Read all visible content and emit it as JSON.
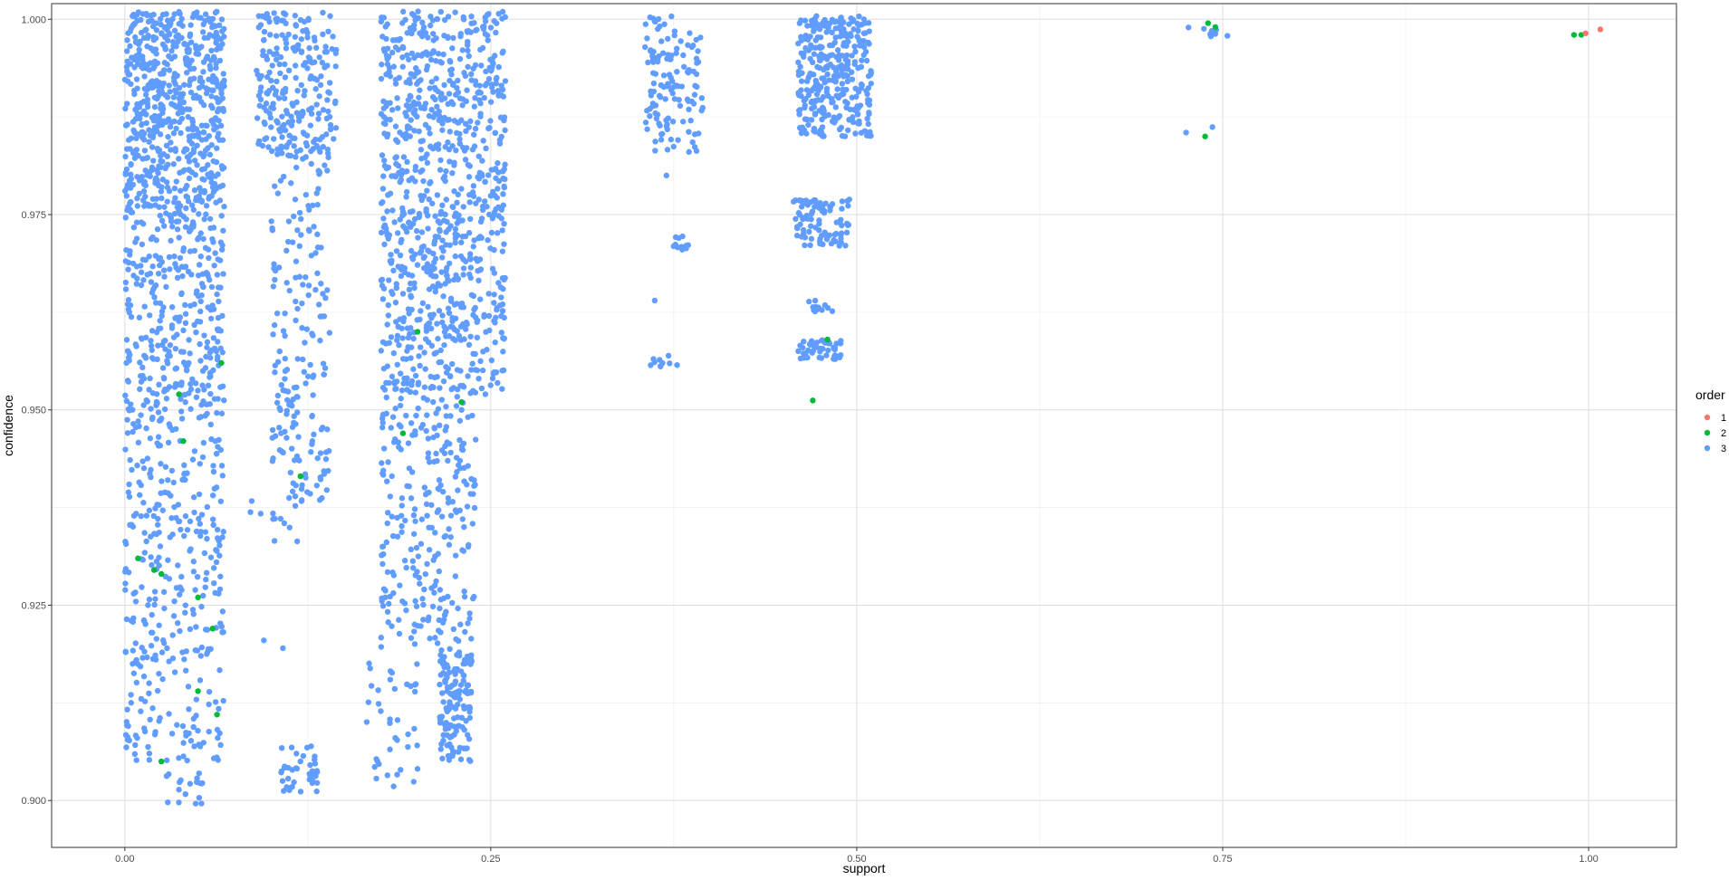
{
  "chart_data": {
    "type": "scatter",
    "title": "",
    "xlabel": "support",
    "ylabel": "confidence",
    "xlim": [
      -0.05,
      1.06
    ],
    "ylim": [
      0.894,
      1.002
    ],
    "x_ticks": [
      0.0,
      0.25,
      0.5,
      0.75,
      1.0
    ],
    "x_tick_labels": [
      "0.00",
      "0.25",
      "0.50",
      "0.75",
      "1.00"
    ],
    "y_ticks": [
      0.9,
      0.925,
      0.95,
      0.975,
      1.0
    ],
    "y_tick_labels": [
      "0.900",
      "0.925",
      "0.950",
      "0.975",
      "1.000"
    ],
    "grid": true,
    "legend": {
      "title": "order",
      "position": "right"
    },
    "colors": {
      "1": "#F8766D",
      "2": "#00BA38",
      "3": "#619CFF"
    },
    "series": [
      {
        "name": "1",
        "color": "#F8766D",
        "points": [
          [
            0.998,
            0.9982
          ],
          [
            1.008,
            0.9987
          ]
        ]
      },
      {
        "name": "2",
        "color": "#00BA38",
        "points": [
          [
            0.99,
            0.998
          ],
          [
            0.995,
            0.998
          ],
          [
            0.74,
            0.9995
          ],
          [
            0.745,
            0.999
          ],
          [
            0.738,
            0.985
          ],
          [
            0.47,
            0.9512
          ],
          [
            0.02,
            0.9295
          ],
          [
            0.025,
            0.929
          ],
          [
            0.06,
            0.922
          ],
          [
            0.05,
            0.914
          ],
          [
            0.063,
            0.911
          ],
          [
            0.025,
            0.905
          ],
          [
            0.04,
            0.946
          ],
          [
            0.037,
            0.952
          ],
          [
            0.19,
            0.947
          ],
          [
            0.2,
            0.96
          ],
          [
            0.23,
            0.951
          ],
          [
            0.12,
            0.9415
          ],
          [
            0.48,
            0.959
          ],
          [
            0.009,
            0.931
          ],
          [
            0.066,
            0.956
          ],
          [
            0.05,
            0.926
          ]
        ]
      },
      {
        "name": "3",
        "color": "#619CFF",
        "clusters": [
          {
            "x": [
              0.0,
              0.068
            ],
            "y": [
              0.976,
              1.001
            ],
            "n": 620
          },
          {
            "x": [
              0.0,
              0.068
            ],
            "y": [
              0.95,
              0.976
            ],
            "n": 340
          },
          {
            "x": [
              0.0,
              0.068
            ],
            "y": [
              0.92,
              0.95
            ],
            "n": 240
          },
          {
            "x": [
              0.0,
              0.068
            ],
            "y": [
              0.905,
              0.92
            ],
            "n": 110
          },
          {
            "x": [
              0.025,
              0.055
            ],
            "y": [
              0.8995,
              0.9035
            ],
            "n": 18
          },
          {
            "x": [
              0.09,
              0.145
            ],
            "y": [
              0.982,
              1.001
            ],
            "n": 240
          },
          {
            "x": [
              0.1,
              0.14
            ],
            "y": [
              0.938,
              0.982
            ],
            "n": 180
          },
          {
            "x": [
              0.085,
              0.12
            ],
            "y": [
              0.933,
              0.94
            ],
            "n": 14
          },
          {
            "x": [
              0.105,
              0.132
            ],
            "y": [
              0.901,
              0.907
            ],
            "n": 40
          },
          {
            "x": [
              0.175,
              0.26
            ],
            "y": [
              0.952,
              1.001
            ],
            "n": 900
          },
          {
            "x": [
              0.175,
              0.24
            ],
            "y": [
              0.92,
              0.952
            ],
            "n": 260
          },
          {
            "x": [
              0.215,
              0.237
            ],
            "y": [
              0.905,
              0.92
            ],
            "n": 140
          },
          {
            "x": [
              0.165,
              0.2
            ],
            "y": [
              0.901,
              0.92
            ],
            "n": 40
          },
          {
            "x": [
              0.355,
              0.395
            ],
            "y": [
              0.983,
              1.0005
            ],
            "n": 130
          },
          {
            "x": [
              0.37,
              0.385
            ],
            "y": [
              0.9705,
              0.9725
            ],
            "n": 12
          },
          {
            "x": [
              0.358,
              0.378
            ],
            "y": [
              0.9555,
              0.957
            ],
            "n": 10
          },
          {
            "x": [
              0.46,
              0.51
            ],
            "y": [
              0.985,
              1.0005
            ],
            "n": 330
          },
          {
            "x": [
              0.455,
              0.495
            ],
            "y": [
              0.971,
              0.977
            ],
            "n": 90
          },
          {
            "x": [
              0.46,
              0.49
            ],
            "y": [
              0.9565,
              0.959
            ],
            "n": 50
          },
          {
            "x": [
              0.465,
              0.485
            ],
            "y": [
              0.9625,
              0.964
            ],
            "n": 12
          },
          {
            "x": [
              0.725,
              0.755
            ],
            "y": [
              0.9975,
              1.0002
            ],
            "n": 8
          }
        ],
        "points": [
          [
            0.725,
            0.9855
          ],
          [
            0.743,
            0.9862
          ],
          [
            0.095,
            0.9205
          ],
          [
            0.108,
            0.9195
          ],
          [
            0.362,
            0.964
          ],
          [
            0.37,
            0.98
          ]
        ]
      }
    ]
  }
}
